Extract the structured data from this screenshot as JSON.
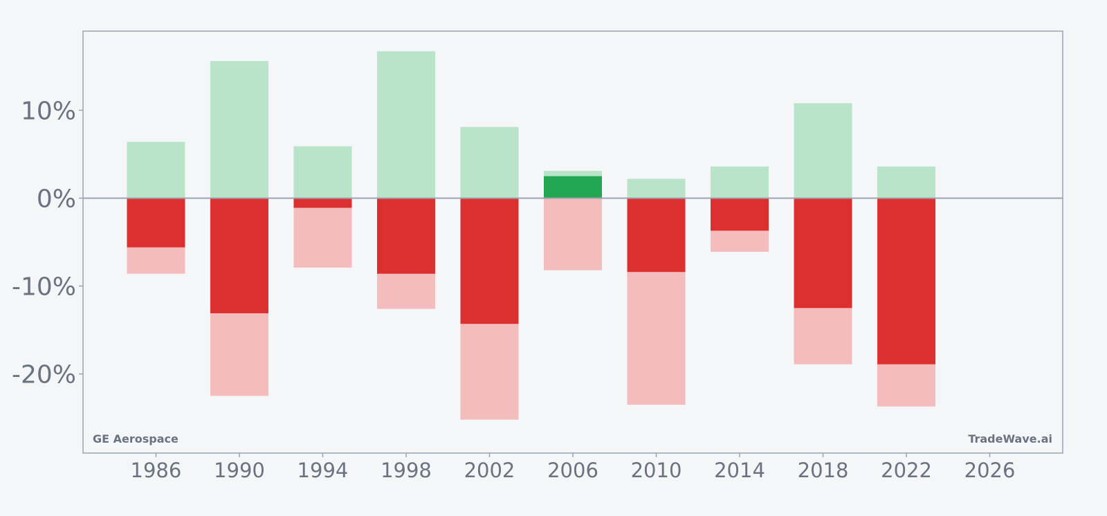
{
  "chart_data": {
    "type": "bar",
    "x": [
      1986,
      1990,
      1994,
      1998,
      2002,
      2006,
      2010,
      2014,
      2018,
      2022
    ],
    "series": [
      {
        "values": [
          6.4,
          15.6,
          5.9,
          16.7,
          8.1,
          3.1,
          2.2,
          3.6,
          10.8,
          3.6
        ],
        "color": "#b9e4c9"
      },
      {
        "values": [
          0,
          0,
          0,
          0,
          0,
          2.5,
          0,
          0,
          0,
          0
        ],
        "color": "#22a852"
      },
      {
        "values": [
          -8.6,
          -22.5,
          -7.9,
          -12.6,
          -25.2,
          -8.2,
          -23.5,
          -6.1,
          -18.9,
          -23.7
        ],
        "color": "#f4bcbc"
      },
      {
        "values": [
          -5.6,
          -13.1,
          -1.1,
          -8.6,
          -14.3,
          0,
          -8.4,
          -3.7,
          -12.5,
          -18.9
        ],
        "color": "#dc3030"
      }
    ],
    "x_ticks": [
      "1986",
      "1990",
      "1994",
      "1998",
      "2002",
      "2006",
      "2010",
      "2014",
      "2018",
      "2022",
      "2026"
    ],
    "y_ticks": [
      "10%",
      "0%",
      "-10%",
      "-20%"
    ],
    "y_tick_values": [
      10,
      0,
      -10,
      -20
    ],
    "xlim": [
      1982.5,
      2029.5
    ],
    "ylim": [
      -29,
      19
    ],
    "grid": false,
    "zero_line": true
  },
  "labels": {
    "left": "GE Aerospace",
    "right": "TradeWave.ai"
  },
  "colors": {
    "background": "#f4f6f8",
    "axis": "#9ca3af",
    "text": "#6b7280"
  }
}
